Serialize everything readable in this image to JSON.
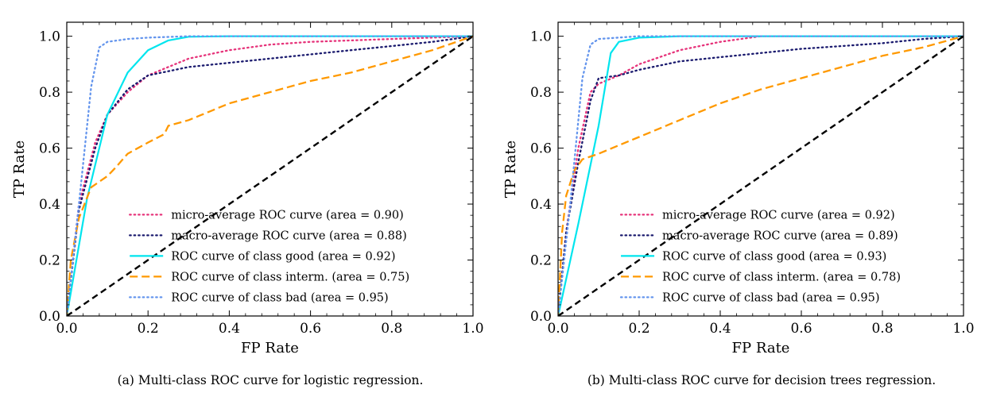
{
  "chart_data": [
    {
      "type": "line",
      "caption": "(a) Multi-class ROC curve for logistic regression.",
      "xlabel": "FP Rate",
      "ylabel": "TP Rate",
      "xlim": [
        0.0,
        1.0
      ],
      "ylim": [
        0.0,
        1.05
      ],
      "xticks": [
        "0.0",
        "0.2",
        "0.4",
        "0.6",
        "0.8",
        "1.0"
      ],
      "yticks": [
        "0.0",
        "0.2",
        "0.4",
        "0.6",
        "0.8",
        "1.0"
      ],
      "legend_position": "lower-right",
      "series": [
        {
          "name": "micro-average ROC curve (area = 0.90)",
          "color": "#e6337a",
          "style": "dotted",
          "points": [
            [
              0,
              0
            ],
            [
              0.03,
              0.4
            ],
            [
              0.07,
              0.62
            ],
            [
              0.1,
              0.72
            ],
            [
              0.15,
              0.8
            ],
            [
              0.2,
              0.86
            ],
            [
              0.3,
              0.92
            ],
            [
              0.4,
              0.95
            ],
            [
              0.5,
              0.97
            ],
            [
              0.6,
              0.98
            ],
            [
              0.8,
              0.99
            ],
            [
              1,
              1
            ]
          ]
        },
        {
          "name": "macro-average ROC curve (area = 0.88)",
          "color": "#1a1a6e",
          "style": "dotted",
          "points": [
            [
              0,
              0
            ],
            [
              0.03,
              0.38
            ],
            [
              0.07,
              0.6
            ],
            [
              0.1,
              0.72
            ],
            [
              0.15,
              0.81
            ],
            [
              0.2,
              0.86
            ],
            [
              0.3,
              0.89
            ],
            [
              0.4,
              0.905
            ],
            [
              0.5,
              0.92
            ],
            [
              0.6,
              0.935
            ],
            [
              0.7,
              0.95
            ],
            [
              0.8,
              0.965
            ],
            [
              0.9,
              0.98
            ],
            [
              1,
              1
            ]
          ]
        },
        {
          "name": "ROC curve of class good (area = 0.92)",
          "color": "#00e5ee",
          "style": "solid",
          "points": [
            [
              0,
              0
            ],
            [
              0.05,
              0.42
            ],
            [
              0.1,
              0.72
            ],
            [
              0.15,
              0.87
            ],
            [
              0.2,
              0.95
            ],
            [
              0.25,
              0.985
            ],
            [
              0.3,
              0.998
            ],
            [
              0.4,
              1
            ],
            [
              1,
              1
            ]
          ]
        },
        {
          "name": "ROC curve of class interm. (area = 0.75)",
          "color": "#ff9900",
          "style": "dashed",
          "points": [
            [
              0,
              0
            ],
            [
              0.01,
              0.2
            ],
            [
              0.03,
              0.35
            ],
            [
              0.06,
              0.46
            ],
            [
              0.1,
              0.5
            ],
            [
              0.12,
              0.53
            ],
            [
              0.15,
              0.58
            ],
            [
              0.2,
              0.62
            ],
            [
              0.24,
              0.65
            ],
            [
              0.25,
              0.68
            ],
            [
              0.3,
              0.7
            ],
            [
              0.35,
              0.73
            ],
            [
              0.4,
              0.76
            ],
            [
              0.5,
              0.8
            ],
            [
              0.6,
              0.84
            ],
            [
              0.7,
              0.87
            ],
            [
              0.8,
              0.91
            ],
            [
              0.9,
              0.95
            ],
            [
              1,
              1
            ]
          ]
        },
        {
          "name": "ROC curve of class bad (area = 0.95)",
          "color": "#6495ed",
          "style": "dotted",
          "points": [
            [
              0,
              0
            ],
            [
              0.03,
              0.4
            ],
            [
              0.06,
              0.82
            ],
            [
              0.08,
              0.96
            ],
            [
              0.1,
              0.98
            ],
            [
              0.15,
              0.99
            ],
            [
              0.2,
              0.995
            ],
            [
              0.3,
              1
            ],
            [
              1,
              1
            ]
          ]
        },
        {
          "name": "",
          "color": "#000000",
          "style": "dashed-thick",
          "diagonal": true,
          "points": [
            [
              0,
              0
            ],
            [
              1,
              1
            ]
          ]
        }
      ]
    },
    {
      "type": "line",
      "caption": "(b) Multi-class ROC curve for decision trees regression.",
      "xlabel": "FP Rate",
      "ylabel": "TP Rate",
      "xlim": [
        0.0,
        1.0
      ],
      "ylim": [
        0.0,
        1.05
      ],
      "xticks": [
        "0.0",
        "0.2",
        "0.4",
        "0.6",
        "0.8",
        "1.0"
      ],
      "yticks": [
        "0.0",
        "0.2",
        "0.4",
        "0.6",
        "0.8",
        "1.0"
      ],
      "legend_position": "lower-right",
      "series": [
        {
          "name": "micro-average ROC curve (area = 0.92)",
          "color": "#e6337a",
          "style": "dotted",
          "points": [
            [
              0,
              0
            ],
            [
              0.02,
              0.3
            ],
            [
              0.05,
              0.6
            ],
            [
              0.08,
              0.8
            ],
            [
              0.1,
              0.83
            ],
            [
              0.15,
              0.86
            ],
            [
              0.2,
              0.9
            ],
            [
              0.3,
              0.95
            ],
            [
              0.4,
              0.98
            ],
            [
              0.5,
              1
            ],
            [
              1,
              1
            ]
          ]
        },
        {
          "name": "macro-average ROC curve (area = 0.89)",
          "color": "#1a1a6e",
          "style": "dotted",
          "points": [
            [
              0,
              0
            ],
            [
              0.02,
              0.3
            ],
            [
              0.05,
              0.55
            ],
            [
              0.08,
              0.77
            ],
            [
              0.1,
              0.85
            ],
            [
              0.15,
              0.86
            ],
            [
              0.2,
              0.88
            ],
            [
              0.3,
              0.91
            ],
            [
              0.4,
              0.925
            ],
            [
              0.5,
              0.94
            ],
            [
              0.6,
              0.955
            ],
            [
              0.7,
              0.965
            ],
            [
              0.8,
              0.975
            ],
            [
              0.9,
              0.99
            ],
            [
              1,
              1
            ]
          ]
        },
        {
          "name": "ROC curve of class good (area = 0.93)",
          "color": "#00e5ee",
          "style": "solid",
          "points": [
            [
              0,
              0
            ],
            [
              0.05,
              0.33
            ],
            [
              0.1,
              0.68
            ],
            [
              0.13,
              0.94
            ],
            [
              0.15,
              0.98
            ],
            [
              0.2,
              0.995
            ],
            [
              0.3,
              1
            ],
            [
              1,
              1
            ]
          ]
        },
        {
          "name": "ROC curve of class interm. (area = 0.78)",
          "color": "#ff9900",
          "style": "dashed",
          "points": [
            [
              0,
              0
            ],
            [
              0.01,
              0.3
            ],
            [
              0.02,
              0.43
            ],
            [
              0.04,
              0.52
            ],
            [
              0.06,
              0.56
            ],
            [
              0.1,
              0.58
            ],
            [
              0.15,
              0.61
            ],
            [
              0.2,
              0.64
            ],
            [
              0.3,
              0.7
            ],
            [
              0.4,
              0.76
            ],
            [
              0.5,
              0.81
            ],
            [
              0.6,
              0.85
            ],
            [
              0.7,
              0.89
            ],
            [
              0.8,
              0.93
            ],
            [
              0.9,
              0.96
            ],
            [
              1,
              1
            ]
          ]
        },
        {
          "name": "ROC curve of class bad (area = 0.95)",
          "color": "#6495ed",
          "style": "dotted",
          "points": [
            [
              0,
              0
            ],
            [
              0.03,
              0.4
            ],
            [
              0.06,
              0.85
            ],
            [
              0.08,
              0.97
            ],
            [
              0.1,
              0.99
            ],
            [
              0.2,
              1
            ],
            [
              1,
              1
            ]
          ]
        },
        {
          "name": "",
          "color": "#000000",
          "style": "dashed-thick",
          "diagonal": true,
          "points": [
            [
              0,
              0
            ],
            [
              1,
              1
            ]
          ]
        }
      ]
    }
  ]
}
